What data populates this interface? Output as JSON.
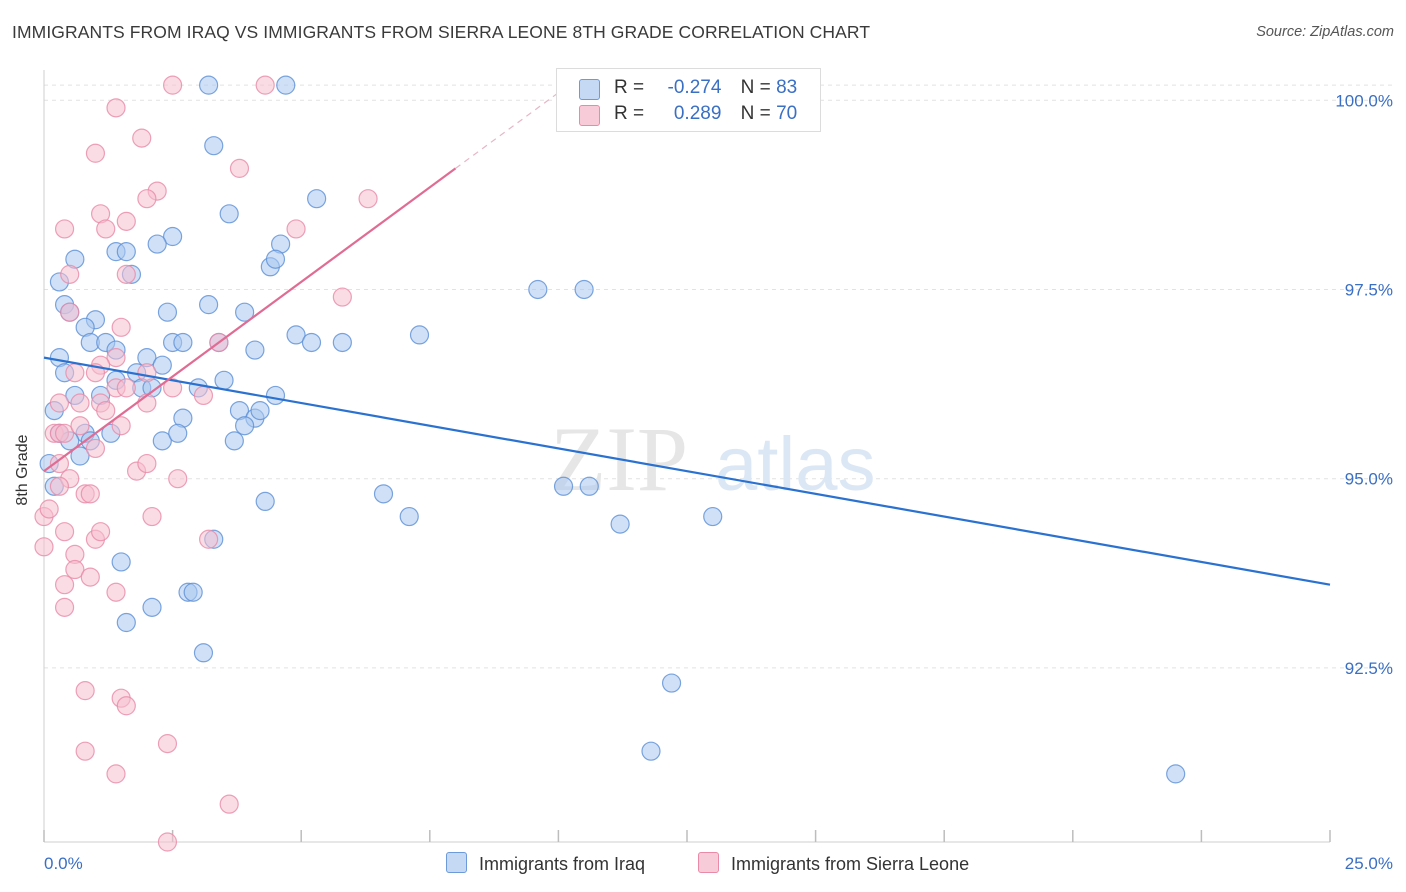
{
  "title": "IMMIGRANTS FROM IRAQ VS IMMIGRANTS FROM SIERRA LEONE 8TH GRADE CORRELATION CHART",
  "source": "Source: ZipAtlas.com",
  "watermark": {
    "zip": "ZIP",
    "atlas": "atlas"
  },
  "legend": {
    "iraq": {
      "r_label": "R =",
      "r_value": "-0.274",
      "n_label": "N =",
      "n_value": "83"
    },
    "sierra": {
      "r_label": "R =",
      "r_value": "0.289",
      "n_label": "N =",
      "n_value": "70"
    }
  },
  "colors": {
    "iraq_fill": "#a9c8f0",
    "iraq_stroke": "#5b8fd6",
    "iraq_line": "#2b72d0",
    "sierra_fill": "#f6bfd0",
    "sierra_stroke": "#e88aa8",
    "sierra_line": "#e06c94",
    "axis_text": "#3a6fc4",
    "grid": "#e2e2e2"
  },
  "chart_data": {
    "type": "scatter",
    "title": "IMMIGRANTS FROM IRAQ VS IMMIGRANTS FROM SIERRA LEONE 8TH GRADE CORRELATION CHART",
    "xlabel": "",
    "ylabel": "8th Grade",
    "xlim": [
      0,
      25
    ],
    "ylim": [
      90.2,
      100.4
    ],
    "x_ticks": [
      0,
      2.5,
      5,
      7.5,
      10,
      12.5,
      15,
      17.5,
      20,
      22.5,
      25
    ],
    "x_tick_labels": {
      "min": "0.0%",
      "max": "25.0%"
    },
    "y_ticks": [
      92.5,
      95.0,
      97.5,
      100.0
    ],
    "y_tick_labels": [
      "92.5%",
      "95.0%",
      "97.5%",
      "100.0%"
    ],
    "grid": true,
    "legend_position": "top-center",
    "series": [
      {
        "name": "Immigrants from Iraq",
        "r": -0.274,
        "n": 83,
        "trend": {
          "x": [
            0,
            25
          ],
          "y": [
            96.6,
            93.6
          ]
        },
        "points": [
          [
            3.2,
            100.2
          ],
          [
            4.7,
            100.2
          ],
          [
            14.2,
            100.2
          ],
          [
            3.3,
            99.4
          ],
          [
            5.3,
            98.7
          ],
          [
            3.6,
            98.5
          ],
          [
            2.5,
            98.2
          ],
          [
            1.4,
            98.0
          ],
          [
            2.2,
            98.1
          ],
          [
            4.6,
            98.1
          ],
          [
            1.6,
            98.0
          ],
          [
            1.7,
            97.7
          ],
          [
            4.4,
            97.8
          ],
          [
            4.5,
            97.9
          ],
          [
            9.6,
            97.5
          ],
          [
            10.5,
            97.5
          ],
          [
            0.4,
            97.3
          ],
          [
            0.5,
            97.2
          ],
          [
            2.4,
            97.2
          ],
          [
            3.2,
            97.3
          ],
          [
            3.9,
            97.2
          ],
          [
            1.0,
            97.1
          ],
          [
            0.8,
            97.0
          ],
          [
            0.9,
            96.8
          ],
          [
            1.2,
            96.8
          ],
          [
            1.4,
            96.7
          ],
          [
            2.0,
            96.6
          ],
          [
            2.5,
            96.8
          ],
          [
            2.7,
            96.8
          ],
          [
            3.4,
            96.8
          ],
          [
            4.1,
            96.7
          ],
          [
            4.9,
            96.9
          ],
          [
            5.2,
            96.8
          ],
          [
            5.8,
            96.8
          ],
          [
            7.3,
            96.9
          ],
          [
            0.3,
            96.6
          ],
          [
            0.4,
            96.4
          ],
          [
            1.8,
            96.4
          ],
          [
            1.4,
            96.3
          ],
          [
            1.9,
            96.2
          ],
          [
            2.1,
            96.2
          ],
          [
            3.0,
            96.2
          ],
          [
            3.5,
            96.3
          ],
          [
            0.6,
            96.1
          ],
          [
            1.1,
            96.1
          ],
          [
            4.5,
            96.1
          ],
          [
            3.8,
            95.9
          ],
          [
            4.1,
            95.8
          ],
          [
            4.2,
            95.9
          ],
          [
            2.7,
            95.8
          ],
          [
            0.2,
            95.9
          ],
          [
            0.3,
            95.6
          ],
          [
            0.8,
            95.6
          ],
          [
            1.3,
            95.6
          ],
          [
            2.3,
            95.5
          ],
          [
            2.6,
            95.6
          ],
          [
            3.7,
            95.5
          ],
          [
            3.9,
            95.7
          ],
          [
            0.5,
            95.5
          ],
          [
            0.9,
            95.5
          ],
          [
            0.1,
            95.2
          ],
          [
            0.2,
            94.9
          ],
          [
            10.1,
            94.9
          ],
          [
            10.6,
            94.9
          ],
          [
            6.6,
            94.8
          ],
          [
            4.3,
            94.7
          ],
          [
            7.1,
            94.5
          ],
          [
            11.2,
            94.4
          ],
          [
            13.0,
            94.5
          ],
          [
            3.3,
            94.2
          ],
          [
            1.5,
            93.9
          ],
          [
            2.8,
            93.5
          ],
          [
            2.9,
            93.5
          ],
          [
            2.1,
            93.3
          ],
          [
            1.6,
            93.1
          ],
          [
            3.1,
            92.7
          ],
          [
            12.2,
            92.3
          ],
          [
            11.8,
            91.4
          ],
          [
            22.0,
            91.1
          ],
          [
            0.3,
            97.6
          ],
          [
            0.6,
            97.9
          ],
          [
            2.3,
            96.5
          ],
          [
            0.7,
            95.3
          ]
        ]
      },
      {
        "name": "Immigrants from Sierra Leone",
        "r": 0.289,
        "n": 70,
        "trend": {
          "x": [
            0,
            8
          ],
          "y": [
            95.1,
            99.1
          ]
        },
        "trend_dash": {
          "x": [
            8,
            10
          ],
          "y": [
            99.1,
            100.1
          ]
        },
        "points": [
          [
            2.5,
            100.2
          ],
          [
            4.3,
            100.2
          ],
          [
            1.4,
            99.9
          ],
          [
            1.9,
            99.5
          ],
          [
            1.0,
            99.3
          ],
          [
            3.8,
            99.1
          ],
          [
            2.2,
            98.8
          ],
          [
            2.0,
            98.7
          ],
          [
            6.3,
            98.7
          ],
          [
            1.1,
            98.5
          ],
          [
            1.6,
            98.4
          ],
          [
            1.2,
            98.3
          ],
          [
            0.4,
            98.3
          ],
          [
            4.9,
            98.3
          ],
          [
            0.5,
            97.7
          ],
          [
            1.6,
            97.7
          ],
          [
            5.8,
            97.4
          ],
          [
            0.5,
            97.2
          ],
          [
            3.4,
            96.8
          ],
          [
            1.4,
            96.6
          ],
          [
            1.1,
            96.5
          ],
          [
            0.6,
            96.4
          ],
          [
            1.0,
            96.4
          ],
          [
            2.0,
            96.4
          ],
          [
            1.4,
            96.2
          ],
          [
            1.6,
            96.2
          ],
          [
            2.5,
            96.2
          ],
          [
            3.1,
            96.1
          ],
          [
            0.3,
            96.0
          ],
          [
            0.7,
            96.0
          ],
          [
            1.1,
            96.0
          ],
          [
            1.5,
            95.7
          ],
          [
            0.2,
            95.6
          ],
          [
            0.3,
            95.6
          ],
          [
            0.4,
            95.6
          ],
          [
            1.0,
            95.4
          ],
          [
            0.3,
            95.2
          ],
          [
            1.8,
            95.1
          ],
          [
            2.0,
            95.2
          ],
          [
            0.5,
            95.0
          ],
          [
            0.8,
            94.8
          ],
          [
            0.9,
            94.8
          ],
          [
            0.3,
            94.9
          ],
          [
            2.1,
            94.5
          ],
          [
            0.0,
            94.5
          ],
          [
            0.4,
            94.3
          ],
          [
            1.0,
            94.2
          ],
          [
            1.1,
            94.3
          ],
          [
            3.2,
            94.2
          ],
          [
            0.0,
            94.1
          ],
          [
            0.6,
            94.0
          ],
          [
            0.6,
            93.8
          ],
          [
            0.9,
            93.7
          ],
          [
            0.4,
            93.6
          ],
          [
            1.4,
            93.5
          ],
          [
            0.4,
            93.3
          ],
          [
            0.8,
            92.2
          ],
          [
            1.5,
            92.1
          ],
          [
            1.6,
            92.0
          ],
          [
            2.4,
            91.5
          ],
          [
            0.8,
            91.4
          ],
          [
            1.4,
            91.1
          ],
          [
            3.6,
            90.7
          ],
          [
            2.4,
            90.2
          ],
          [
            1.5,
            97.0
          ],
          [
            2.0,
            96.0
          ],
          [
            1.2,
            95.9
          ],
          [
            0.7,
            95.7
          ],
          [
            0.1,
            94.6
          ],
          [
            2.6,
            95.0
          ]
        ]
      }
    ]
  },
  "bottom_legend": {
    "iraq": "Immigrants from Iraq",
    "sierra": "Immigrants from Sierra Leone"
  },
  "x_axis_labels": {
    "left": "0.0%",
    "right": "25.0%"
  }
}
